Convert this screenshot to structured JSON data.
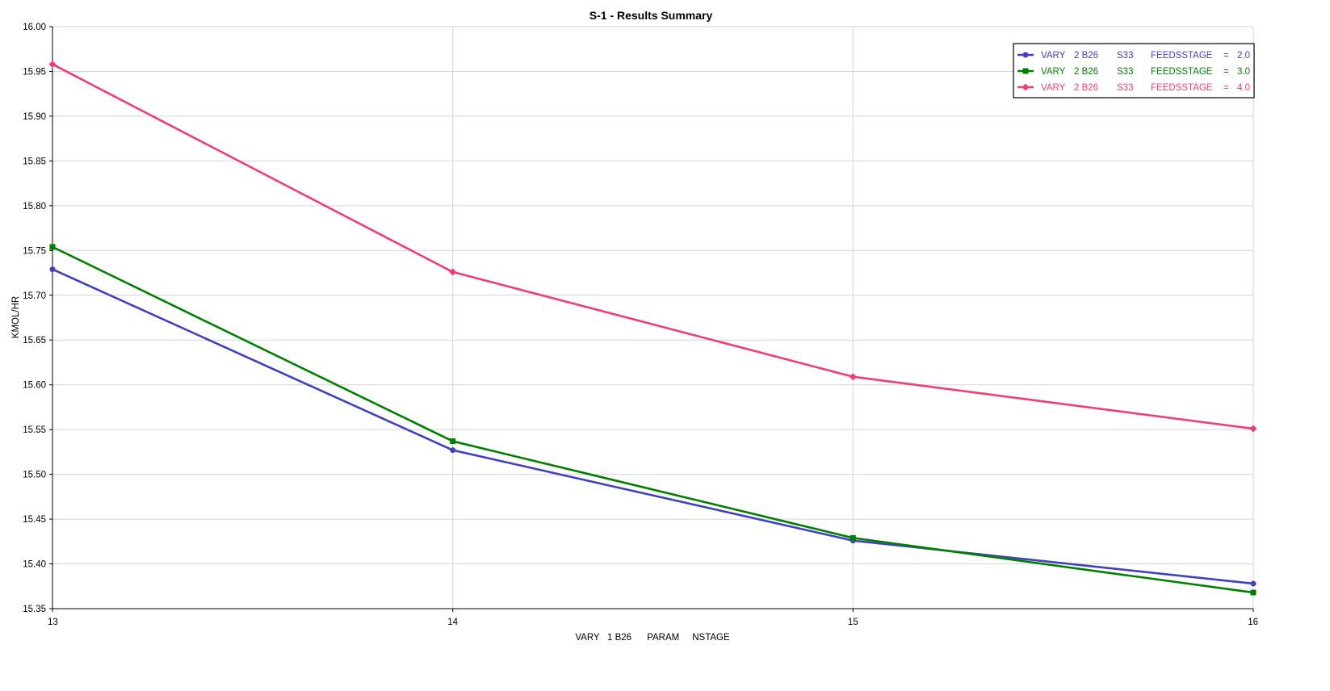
{
  "chart_data": {
    "type": "line",
    "title": "S-1 - Results Summary",
    "xlabel": "VARY   1 B26      PARAM     NSTAGE",
    "ylabel": "KMOL/HR",
    "x": [
      13,
      14,
      15,
      16
    ],
    "xlim": [
      13,
      16
    ],
    "ylim": [
      15.35,
      16.0
    ],
    "x_ticks": [
      "13",
      "14",
      "15",
      "16"
    ],
    "y_ticks": [
      "15.35",
      "15.40",
      "15.45",
      "15.50",
      "15.55",
      "15.60",
      "15.65",
      "15.70",
      "15.75",
      "15.80",
      "15.85",
      "15.90",
      "15.95",
      "16.00"
    ],
    "grid": true,
    "legend_position": "top-right",
    "series": [
      {
        "name": "VARY   2 B26      S33      FEEDSSTAGE    =  2.0",
        "legend_parts": [
          "VARY",
          "2 B26",
          "S33",
          "FEEDSSTAGE",
          "=",
          "2.0"
        ],
        "color": "#4040c0",
        "marker": "circle",
        "values": [
          15.729,
          15.527,
          15.426,
          15.378
        ]
      },
      {
        "name": "VARY   2 B26      S33      FEEDSSTAGE    =  3.0",
        "legend_parts": [
          "VARY",
          "2 B26",
          "S33",
          "FEEDSSTAGE",
          "=",
          "3.0"
        ],
        "color": "#008000",
        "marker": "square",
        "values": [
          15.754,
          15.537,
          15.429,
          15.368
        ]
      },
      {
        "name": "VARY   2 B26      S33      FEEDSSTAGE    =  4.0",
        "legend_parts": [
          "VARY",
          "2 B26",
          "S33",
          "FEEDSSTAGE",
          "=",
          "4.0"
        ],
        "color": "#f03c7d",
        "marker": "diamond",
        "values": [
          15.958,
          15.726,
          15.609,
          15.551
        ]
      }
    ]
  }
}
